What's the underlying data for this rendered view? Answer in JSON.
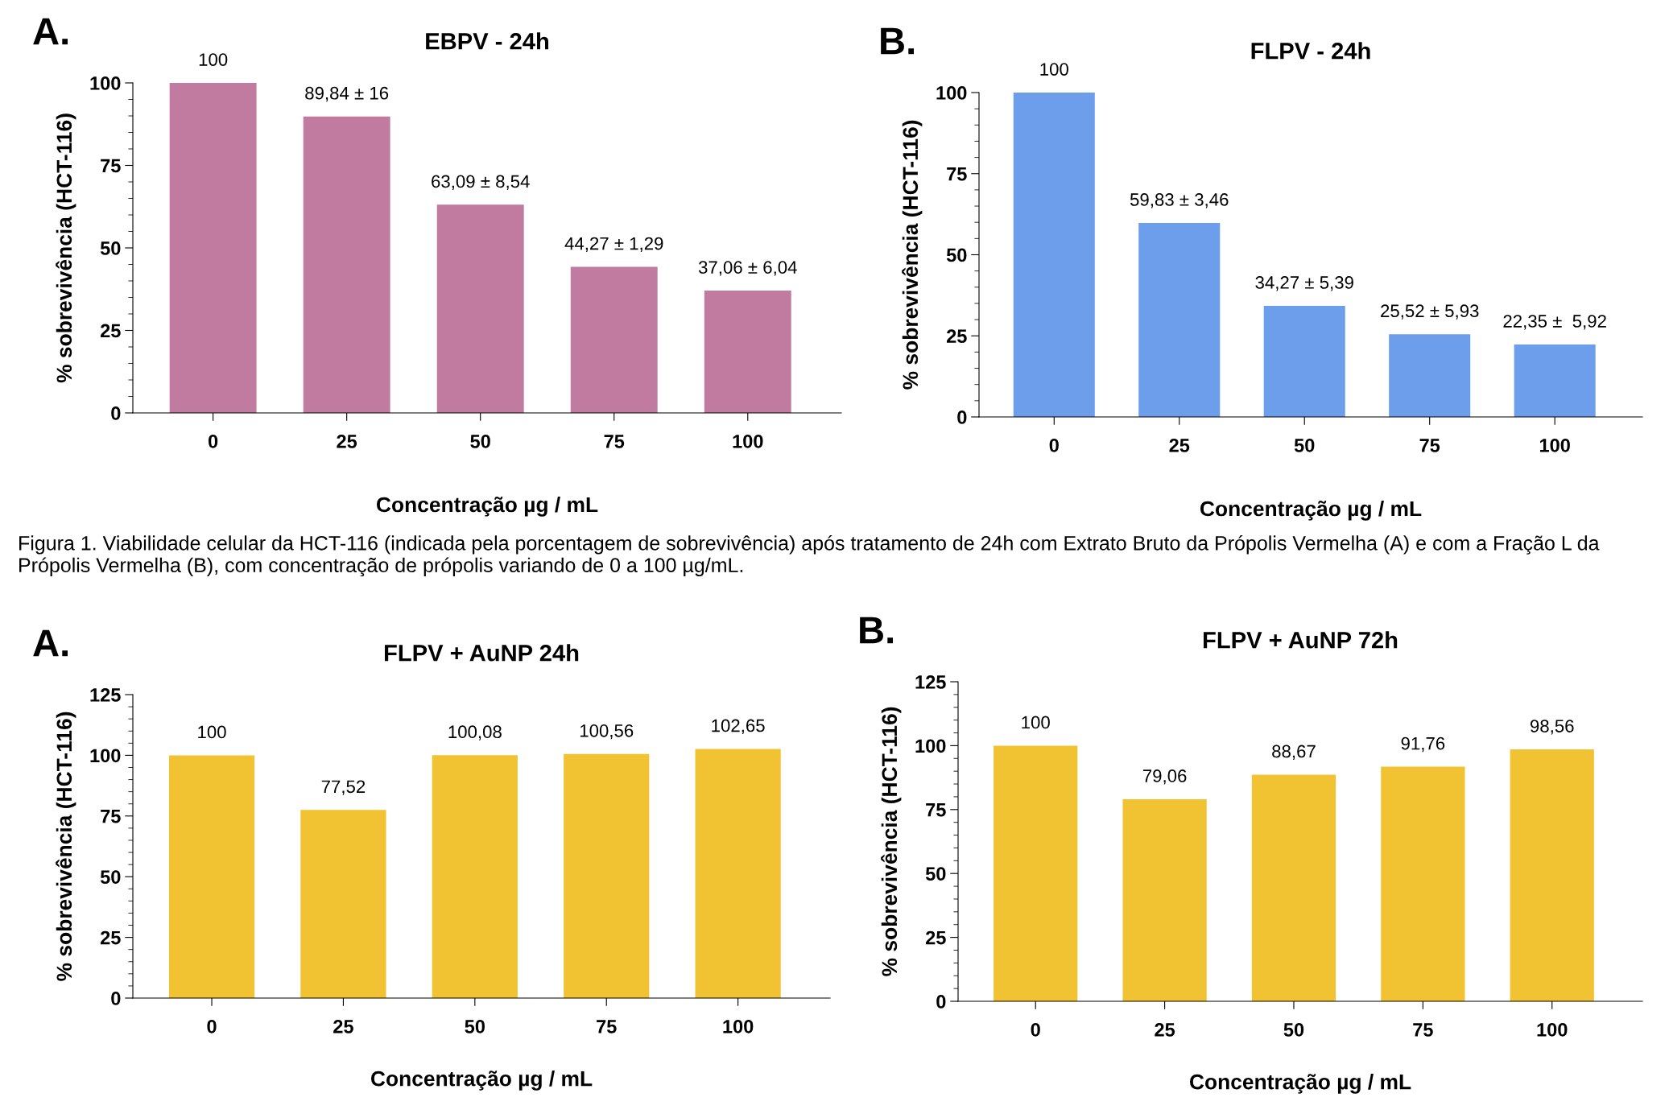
{
  "chart_data": [
    {
      "type": "bar",
      "title": "EBPV - 24h",
      "xlabel": "Concentração µg / mL",
      "ylabel": "% sobrevivência (HCT-116)",
      "categories": [
        "0",
        "25",
        "50",
        "75",
        "100"
      ],
      "values": [
        100,
        89.84,
        63.09,
        44.27,
        37.06
      ],
      "value_labels": [
        "100",
        "89,84 ± 16",
        "63,09 ± 8,54",
        "44,27 ± 1,29",
        "37,06 ± 6,04"
      ],
      "color": "#c27ba0",
      "ylim": [
        0,
        100
      ],
      "yticks": [
        0,
        25,
        50,
        75,
        100
      ],
      "grid": false,
      "legend": false,
      "annotations": [
        "A.",
        "Figura 1. Viabilidade celular da HCT-116 (indicada pela porcentagem de sobrevivência) após tratamento de 24h com Extrato Bruto da Própolis Vermelha (A) e com a Fração L da Própolis Vermelha (B), com concentração de própolis variando de 0 a 100 µg/mL."
      ]
    },
    {
      "type": "bar",
      "title": "FLPV - 24h",
      "xlabel": "Concentração µg / mL",
      "ylabel": "% sobrevivência (HCT-116)",
      "categories": [
        "0",
        "25",
        "50",
        "75",
        "100"
      ],
      "values": [
        100,
        59.83,
        34.27,
        25.52,
        22.35
      ],
      "value_labels": [
        "100",
        "59,83 ± 3,46",
        "34,27 ± 5,39",
        "25,52 ± 5,93",
        "22,35 ±  5,92"
      ],
      "color": "#6d9eeb",
      "ylim": [
        0,
        100
      ],
      "yticks": [
        0,
        25,
        50,
        75,
        100
      ],
      "grid": false,
      "legend": false,
      "annotations": [
        "B."
      ]
    },
    {
      "type": "bar",
      "title": "FLPV + AuNP 24h",
      "xlabel": "Concentração µg / mL",
      "ylabel": "% sobrevivência (HCT-116)",
      "categories": [
        "0",
        "25",
        "50",
        "75",
        "100"
      ],
      "values": [
        100,
        77.52,
        100.08,
        100.56,
        102.65
      ],
      "value_labels": [
        "100",
        "77,52",
        "100,08",
        "100,56",
        "102,65"
      ],
      "color": "#f1c232",
      "ylim": [
        0,
        125
      ],
      "yticks": [
        0,
        25,
        50,
        75,
        100,
        125
      ],
      "grid": false,
      "legend": false,
      "annotations": [
        "A."
      ]
    },
    {
      "type": "bar",
      "title": "FLPV + AuNP 72h",
      "xlabel": "Concentração µg / mL",
      "ylabel": "% sobrevivência (HCT-116)",
      "categories": [
        "0",
        "25",
        "50",
        "75",
        "100"
      ],
      "values": [
        100,
        79.06,
        88.67,
        91.76,
        98.56
      ],
      "value_labels": [
        "100",
        "79,06",
        "88,67",
        "91,76",
        "98,56"
      ],
      "color": "#f1c232",
      "ylim": [
        0,
        125
      ],
      "yticks": [
        0,
        25,
        50,
        75,
        100,
        125
      ],
      "grid": false,
      "legend": false,
      "annotations": [
        "B."
      ]
    }
  ]
}
